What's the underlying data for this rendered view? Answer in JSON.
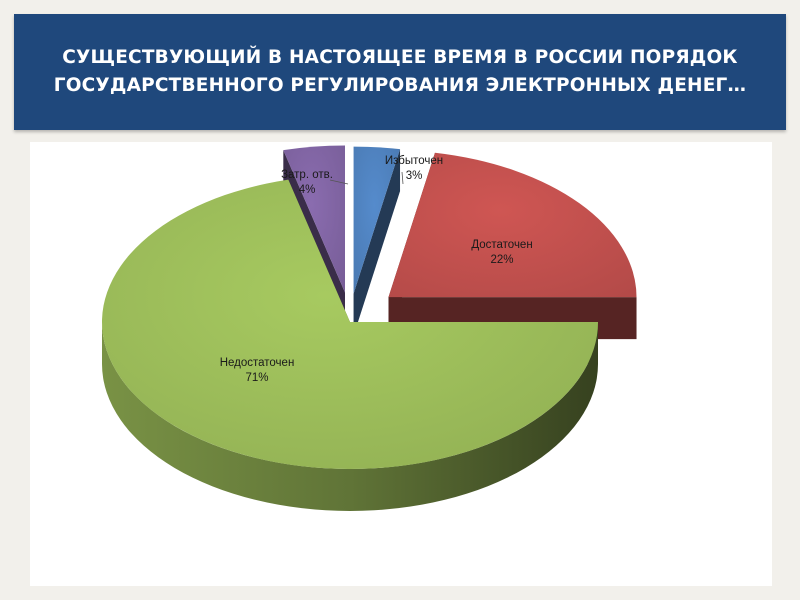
{
  "title": {
    "line1": "СУЩЕСТВУЮЩИЙ В НАСТОЯЩЕЕ ВРЕМЯ В РОССИИ ПОРЯДОК",
    "line2": "ГОСУДАРСТВЕННОГО РЕГУЛИРОВАНИЯ ЭЛЕКТРОННЫХ ДЕНЕГ…"
  },
  "colors": {
    "title_bg": "#1f487c",
    "slide_bg": "#f2f0eb"
  },
  "chart_data": {
    "type": "pie",
    "style": "3d-exploded",
    "title": "",
    "slices": [
      {
        "label": "Избыточен",
        "value": 3,
        "value_label": "3%",
        "color": "#4f81bd"
      },
      {
        "label": "Достаточен",
        "value": 22,
        "value_label": "22%",
        "color": "#c0504d"
      },
      {
        "label": "Недостаточен",
        "value": 71,
        "value_label": "71%",
        "color": "#9bbb59"
      },
      {
        "label": "Затр. отв.",
        "value": 4,
        "value_label": "4%",
        "color": "#8064a2"
      }
    ]
  }
}
